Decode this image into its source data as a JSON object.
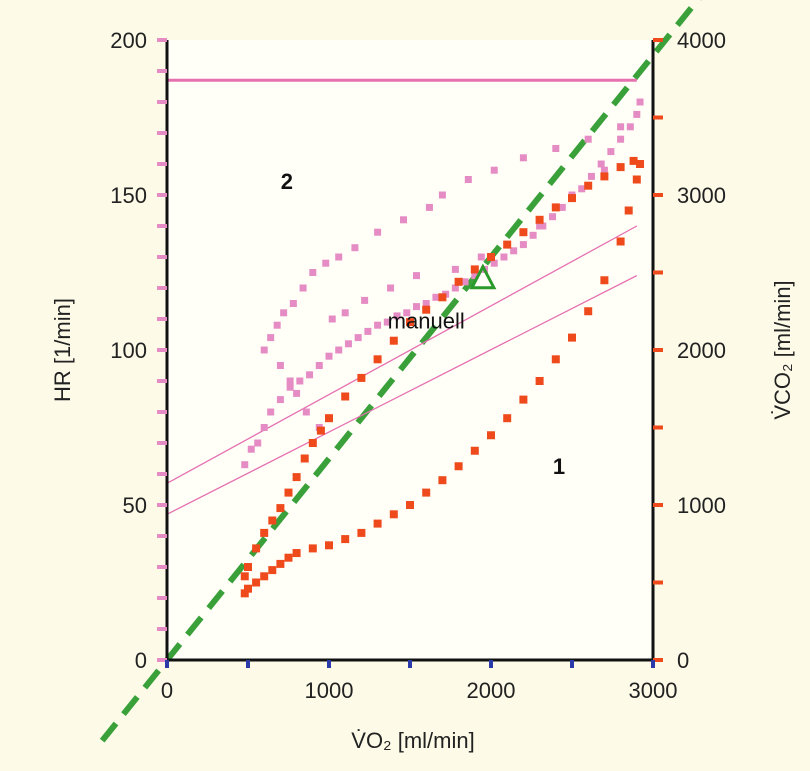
{
  "chart_data": {
    "type": "scatter",
    "title": "",
    "xlabel": "V̇O₂ [ml/min]",
    "ylabel_left": "HR [1/min]",
    "ylabel_right": "V̇CO₂ [ml/min]",
    "xlim": [
      0,
      3000
    ],
    "ylim_left": [
      0,
      200
    ],
    "ylim_right": [
      0,
      4000
    ],
    "x_ticks": [
      "0",
      "1000",
      "2000",
      "3000"
    ],
    "y_left_ticks": [
      "0",
      "50",
      "100",
      "150",
      "200"
    ],
    "y_right_ticks": [
      "0",
      "1000",
      "2000",
      "3000",
      "4000"
    ],
    "grid": false,
    "colors": {
      "hr": "#e58cc4",
      "vco2": "#ee4a1c",
      "diagonal": "#3aa03a",
      "threshold_marker": "#2a9a2a",
      "hr_limit": "#e670b0",
      "tick_right": "#ee4a1c",
      "tick_bottom": "#2a3aa8",
      "tick_left": "#e58cc4"
    },
    "series": [
      {
        "axis": "left",
        "color": "#e58cc4",
        "points": [
          [
            480,
            63
          ],
          [
            520,
            68
          ],
          [
            560,
            70
          ],
          [
            600,
            75
          ],
          [
            640,
            80
          ],
          [
            700,
            84
          ],
          [
            760,
            88
          ],
          [
            820,
            90
          ],
          [
            880,
            92
          ],
          [
            940,
            95
          ],
          [
            1000,
            98
          ],
          [
            1060,
            100
          ],
          [
            1120,
            102
          ],
          [
            1180,
            104
          ],
          [
            1240,
            106
          ],
          [
            1300,
            108
          ],
          [
            1360,
            109
          ],
          [
            1420,
            111
          ],
          [
            1480,
            112
          ],
          [
            1540,
            114
          ],
          [
            1600,
            115
          ],
          [
            1660,
            117
          ],
          [
            1720,
            118
          ],
          [
            1780,
            120
          ],
          [
            1840,
            122
          ],
          [
            1900,
            124
          ],
          [
            1960,
            126
          ],
          [
            2020,
            128
          ],
          [
            2080,
            130
          ],
          [
            2140,
            132
          ],
          [
            2200,
            134
          ],
          [
            2260,
            137
          ],
          [
            2320,
            140
          ],
          [
            2380,
            143
          ],
          [
            2440,
            146
          ],
          [
            2500,
            149
          ],
          [
            2560,
            152
          ],
          [
            2620,
            156
          ],
          [
            2680,
            160
          ],
          [
            2740,
            164
          ],
          [
            2800,
            168
          ],
          [
            2860,
            172
          ],
          [
            2900,
            176
          ],
          [
            2920,
            180
          ],
          [
            600,
            100
          ],
          [
            640,
            104
          ],
          [
            680,
            108
          ],
          [
            700,
            95
          ],
          [
            720,
            112
          ],
          [
            760,
            90
          ],
          [
            780,
            115
          ],
          [
            800,
            86
          ],
          [
            840,
            120
          ],
          [
            860,
            80
          ],
          [
            900,
            125
          ],
          [
            940,
            75
          ],
          [
            980,
            128
          ],
          [
            1020,
            110
          ],
          [
            1060,
            130
          ],
          [
            1100,
            112
          ],
          [
            1160,
            133
          ],
          [
            1220,
            116
          ],
          [
            1300,
            138
          ],
          [
            1380,
            120
          ],
          [
            1460,
            142
          ],
          [
            1540,
            124
          ],
          [
            1620,
            146
          ],
          [
            1700,
            150
          ],
          [
            1780,
            126
          ],
          [
            1860,
            155
          ],
          [
            1940,
            130
          ],
          [
            2020,
            158
          ],
          [
            2100,
            134
          ],
          [
            2200,
            162
          ],
          [
            2300,
            140
          ],
          [
            2400,
            165
          ],
          [
            2500,
            150
          ],
          [
            2600,
            168
          ],
          [
            2700,
            158
          ],
          [
            2800,
            172
          ]
        ]
      },
      {
        "axis": "right",
        "color": "#ee4a1c",
        "points": [
          [
            480,
            430
          ],
          [
            500,
            460
          ],
          [
            550,
            500
          ],
          [
            600,
            540
          ],
          [
            650,
            580
          ],
          [
            700,
            620
          ],
          [
            750,
            660
          ],
          [
            800,
            690
          ],
          [
            900,
            720
          ],
          [
            1000,
            740
          ],
          [
            1100,
            780
          ],
          [
            1200,
            820
          ],
          [
            1300,
            880
          ],
          [
            1400,
            940
          ],
          [
            1500,
            1000
          ],
          [
            1600,
            1080
          ],
          [
            1700,
            1160
          ],
          [
            1800,
            1250
          ],
          [
            1900,
            1350
          ],
          [
            2000,
            1450
          ],
          [
            2100,
            1560
          ],
          [
            2200,
            1680
          ],
          [
            2300,
            1800
          ],
          [
            2400,
            1940
          ],
          [
            2500,
            2080
          ],
          [
            2600,
            2250
          ],
          [
            2700,
            2450
          ],
          [
            2800,
            2700
          ],
          [
            2850,
            2900
          ],
          [
            2900,
            3100
          ],
          [
            2920,
            3200
          ],
          [
            480,
            540
          ],
          [
            500,
            600
          ],
          [
            550,
            720
          ],
          [
            600,
            820
          ],
          [
            650,
            900
          ],
          [
            700,
            980
          ],
          [
            750,
            1080
          ],
          [
            800,
            1180
          ],
          [
            850,
            1300
          ],
          [
            900,
            1400
          ],
          [
            950,
            1480
          ],
          [
            1000,
            1560
          ],
          [
            1100,
            1700
          ],
          [
            1200,
            1820
          ],
          [
            1300,
            1940
          ],
          [
            1400,
            2060
          ],
          [
            1500,
            2180
          ],
          [
            1600,
            2260
          ],
          [
            1700,
            2340
          ],
          [
            1800,
            2440
          ],
          [
            1900,
            2520
          ],
          [
            2000,
            2600
          ],
          [
            2100,
            2680
          ],
          [
            2200,
            2760
          ],
          [
            2300,
            2840
          ],
          [
            2400,
            2920
          ],
          [
            2500,
            2980
          ],
          [
            2600,
            3060
          ],
          [
            2700,
            3120
          ],
          [
            2800,
            3180
          ],
          [
            2880,
            3220
          ]
        ]
      }
    ],
    "lines": [
      {
        "name": "diagonal",
        "style": "dashed",
        "axis": "left",
        "from": [
          -400,
          -26
        ],
        "to": [
          3400,
          221
        ]
      },
      {
        "name": "hr-fit-upper",
        "style": "thin",
        "axis": "left",
        "from": [
          0,
          57
        ],
        "to": [
          2900,
          140
        ]
      },
      {
        "name": "hr-fit-lower",
        "style": "thin",
        "axis": "left",
        "from": [
          0,
          47
        ],
        "to": [
          2900,
          124
        ]
      },
      {
        "name": "hr-max",
        "style": "solid",
        "axis": "left",
        "from": [
          0,
          187
        ],
        "to": [
          2900,
          187
        ]
      }
    ],
    "threshold_marker": {
      "x": 1950,
      "y": 123
    },
    "annotations": [
      {
        "text": "manuell",
        "x": 1600,
        "y": 107
      },
      {
        "text": "2",
        "x": 740,
        "y": 152
      },
      {
        "text": "1",
        "x": 2420,
        "y": 60
      }
    ]
  }
}
